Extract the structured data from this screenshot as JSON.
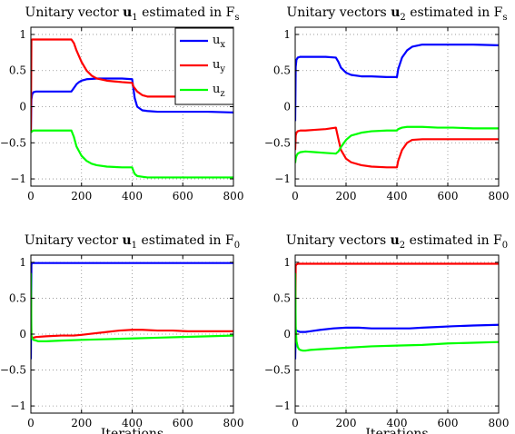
{
  "colors": {
    "ux": "#0000ff",
    "uy": "#ff0000",
    "uz": "#00ff00"
  },
  "chart_data": [
    {
      "type": "line",
      "title": {
        "pre": "Unitary vector ",
        "vec": "u",
        "vecsub": "1",
        "mid": " estimated in F",
        "frame": "s"
      },
      "xlabel": "",
      "xlim": [
        0,
        800
      ],
      "ylim": [
        -1.1,
        1.1
      ],
      "xticks": [
        "0",
        "200",
        "400",
        "600",
        "800"
      ],
      "yticks": [
        "−1",
        "−0.5",
        "0",
        "0.5",
        "1"
      ],
      "grid": true,
      "legend": {
        "placement": "top-right",
        "entries": [
          {
            "base": "u",
            "sub": "x"
          },
          {
            "base": "u",
            "sub": "y"
          },
          {
            "base": "u",
            "sub": "z"
          }
        ]
      },
      "series": [
        {
          "name": "u_x",
          "color": "ux",
          "x": [
            0,
            2,
            5,
            10,
            20,
            40,
            80,
            120,
            160,
            170,
            180,
            190,
            200,
            220,
            260,
            300,
            360,
            400,
            405,
            410,
            420,
            440,
            460,
            500,
            560,
            620,
            700,
            800
          ],
          "y": [
            -0.35,
            0.1,
            0.17,
            0.2,
            0.21,
            0.21,
            0.21,
            0.21,
            0.21,
            0.26,
            0.31,
            0.34,
            0.36,
            0.38,
            0.39,
            0.39,
            0.39,
            0.38,
            0.25,
            0.12,
            0.0,
            -0.05,
            -0.06,
            -0.07,
            -0.07,
            -0.07,
            -0.07,
            -0.08
          ]
        },
        {
          "name": "u_y",
          "color": "uy",
          "x": [
            0,
            2,
            5,
            10,
            20,
            40,
            80,
            120,
            160,
            170,
            180,
            200,
            220,
            240,
            260,
            300,
            360,
            400,
            405,
            420,
            440,
            460,
            500,
            560,
            620,
            700,
            800
          ],
          "y": [
            -0.35,
            0.92,
            0.93,
            0.93,
            0.93,
            0.93,
            0.93,
            0.93,
            0.93,
            0.88,
            0.78,
            0.62,
            0.5,
            0.43,
            0.39,
            0.36,
            0.34,
            0.33,
            0.28,
            0.21,
            0.16,
            0.14,
            0.14,
            0.14,
            0.14,
            0.14,
            0.14
          ]
        },
        {
          "name": "u_z",
          "color": "uz",
          "x": [
            0,
            2,
            5,
            10,
            20,
            40,
            80,
            120,
            160,
            170,
            180,
            200,
            220,
            240,
            260,
            300,
            360,
            400,
            405,
            410,
            420,
            440,
            460,
            500,
            560,
            620,
            700,
            800
          ],
          "y": [
            -0.35,
            -0.35,
            -0.34,
            -0.33,
            -0.33,
            -0.33,
            -0.33,
            -0.33,
            -0.33,
            -0.42,
            -0.55,
            -0.68,
            -0.75,
            -0.79,
            -0.81,
            -0.83,
            -0.84,
            -0.84,
            -0.89,
            -0.93,
            -0.96,
            -0.97,
            -0.98,
            -0.98,
            -0.98,
            -0.98,
            -0.98,
            -0.98
          ]
        }
      ]
    },
    {
      "type": "line",
      "title": {
        "pre": "Unitary vectors ",
        "vec": "u",
        "vecsub": "2",
        "mid": " estimated in F",
        "frame": "s"
      },
      "xlabel": "",
      "xlim": [
        0,
        800
      ],
      "ylim": [
        -1.1,
        1.1
      ],
      "xticks": [
        "0",
        "200",
        "400",
        "600",
        "800"
      ],
      "yticks": [
        "−1",
        "−0.5",
        "0",
        "0.5",
        "1"
      ],
      "grid": true,
      "legend": null,
      "series": [
        {
          "name": "u_x",
          "color": "ux",
          "x": [
            0,
            2,
            5,
            10,
            20,
            40,
            80,
            120,
            160,
            170,
            180,
            200,
            220,
            260,
            300,
            360,
            400,
            405,
            420,
            440,
            460,
            500,
            560,
            620,
            700,
            800
          ],
          "y": [
            -0.2,
            0.55,
            0.65,
            0.68,
            0.69,
            0.69,
            0.69,
            0.69,
            0.68,
            0.62,
            0.54,
            0.47,
            0.44,
            0.42,
            0.42,
            0.41,
            0.41,
            0.52,
            0.68,
            0.78,
            0.83,
            0.86,
            0.86,
            0.86,
            0.86,
            0.85
          ]
        },
        {
          "name": "u_y",
          "color": "uy",
          "x": [
            0,
            2,
            5,
            10,
            20,
            40,
            80,
            120,
            160,
            170,
            180,
            200,
            220,
            260,
            300,
            360,
            400,
            405,
            420,
            440,
            460,
            500,
            560,
            620,
            700,
            800
          ],
          "y": [
            -0.6,
            -0.4,
            -0.36,
            -0.34,
            -0.33,
            -0.33,
            -0.32,
            -0.31,
            -0.29,
            -0.45,
            -0.6,
            -0.72,
            -0.77,
            -0.81,
            -0.83,
            -0.84,
            -0.84,
            -0.75,
            -0.6,
            -0.5,
            -0.46,
            -0.45,
            -0.45,
            -0.45,
            -0.45,
            -0.45
          ]
        },
        {
          "name": "u_z",
          "color": "uz",
          "x": [
            0,
            2,
            5,
            10,
            20,
            40,
            80,
            120,
            160,
            170,
            180,
            200,
            220,
            260,
            300,
            360,
            400,
            405,
            420,
            440,
            460,
            500,
            560,
            620,
            700,
            800
          ],
          "y": [
            -0.78,
            -0.72,
            -0.68,
            -0.65,
            -0.63,
            -0.62,
            -0.63,
            -0.64,
            -0.65,
            -0.62,
            -0.56,
            -0.46,
            -0.4,
            -0.36,
            -0.34,
            -0.33,
            -0.33,
            -0.31,
            -0.29,
            -0.28,
            -0.28,
            -0.28,
            -0.29,
            -0.29,
            -0.3,
            -0.3
          ]
        }
      ]
    },
    {
      "type": "line",
      "title": {
        "pre": "Unitary vector ",
        "vec": "u",
        "vecsub": "1",
        "mid": " estimated in F",
        "frame": "0"
      },
      "xlabel": "Iterations",
      "xlim": [
        0,
        800
      ],
      "ylim": [
        -1.1,
        1.1
      ],
      "xticks": [
        "0",
        "200",
        "400",
        "600",
        "800"
      ],
      "yticks": [
        "−1",
        "−0.5",
        "0",
        "0.5",
        "1"
      ],
      "grid": true,
      "legend": null,
      "series": [
        {
          "name": "u_x",
          "color": "ux",
          "x": [
            0,
            2,
            5,
            10,
            20,
            60,
            120,
            200,
            300,
            400,
            500,
            600,
            700,
            800
          ],
          "y": [
            -0.35,
            0.97,
            0.99,
            0.99,
            0.99,
            0.99,
            0.99,
            0.99,
            0.99,
            0.99,
            0.99,
            0.99,
            0.99,
            0.99
          ]
        },
        {
          "name": "u_y",
          "color": "uy",
          "x": [
            0,
            2,
            5,
            10,
            20,
            60,
            120,
            170,
            200,
            250,
            300,
            350,
            400,
            440,
            500,
            560,
            620,
            700,
            800
          ],
          "y": [
            0.6,
            -0.02,
            -0.05,
            -0.05,
            -0.04,
            -0.03,
            -0.02,
            -0.02,
            -0.01,
            0.01,
            0.03,
            0.05,
            0.06,
            0.06,
            0.05,
            0.05,
            0.04,
            0.04,
            0.04
          ]
        },
        {
          "name": "u_z",
          "color": "uz",
          "x": [
            0,
            2,
            5,
            10,
            20,
            30,
            60,
            120,
            200,
            300,
            400,
            500,
            600,
            700,
            800
          ],
          "y": [
            0.85,
            -0.02,
            -0.06,
            -0.08,
            -0.09,
            -0.1,
            -0.1,
            -0.09,
            -0.08,
            -0.07,
            -0.06,
            -0.05,
            -0.04,
            -0.03,
            -0.02
          ]
        }
      ]
    },
    {
      "type": "line",
      "title": {
        "pre": "Unitary vectors ",
        "vec": "u",
        "vecsub": "2",
        "mid": " estimated in F",
        "frame": "0"
      },
      "xlabel": "Iterations",
      "xlim": [
        0,
        800
      ],
      "ylim": [
        -1.1,
        1.1
      ],
      "xticks": [
        "0",
        "200",
        "400",
        "600",
        "800"
      ],
      "yticks": [
        "−1",
        "−0.5",
        "0",
        "0.5",
        "1"
      ],
      "grid": true,
      "legend": null,
      "series": [
        {
          "name": "u_x",
          "color": "ux",
          "x": [
            0,
            2,
            5,
            10,
            20,
            40,
            60,
            100,
            150,
            200,
            250,
            300,
            350,
            400,
            450,
            500,
            560,
            620,
            700,
            800
          ],
          "y": [
            -0.35,
            0.04,
            0.05,
            0.04,
            0.03,
            0.03,
            0.04,
            0.06,
            0.08,
            0.09,
            0.09,
            0.08,
            0.08,
            0.08,
            0.08,
            0.09,
            0.1,
            0.11,
            0.12,
            0.13
          ]
        },
        {
          "name": "u_y",
          "color": "uy",
          "x": [
            0,
            2,
            5,
            10,
            20,
            60,
            120,
            200,
            300,
            400,
            500,
            600,
            700,
            800
          ],
          "y": [
            0.0,
            0.95,
            0.97,
            0.98,
            0.98,
            0.98,
            0.98,
            0.98,
            0.98,
            0.98,
            0.98,
            0.98,
            0.98,
            0.98
          ]
        },
        {
          "name": "u_z",
          "color": "uz",
          "x": [
            0,
            2,
            5,
            10,
            15,
            20,
            30,
            40,
            60,
            100,
            150,
            200,
            300,
            400,
            500,
            600,
            700,
            800
          ],
          "y": [
            0.85,
            0.1,
            -0.1,
            -0.18,
            -0.21,
            -0.22,
            -0.23,
            -0.23,
            -0.22,
            -0.21,
            -0.2,
            -0.19,
            -0.17,
            -0.16,
            -0.15,
            -0.13,
            -0.12,
            -0.11
          ]
        }
      ]
    }
  ]
}
